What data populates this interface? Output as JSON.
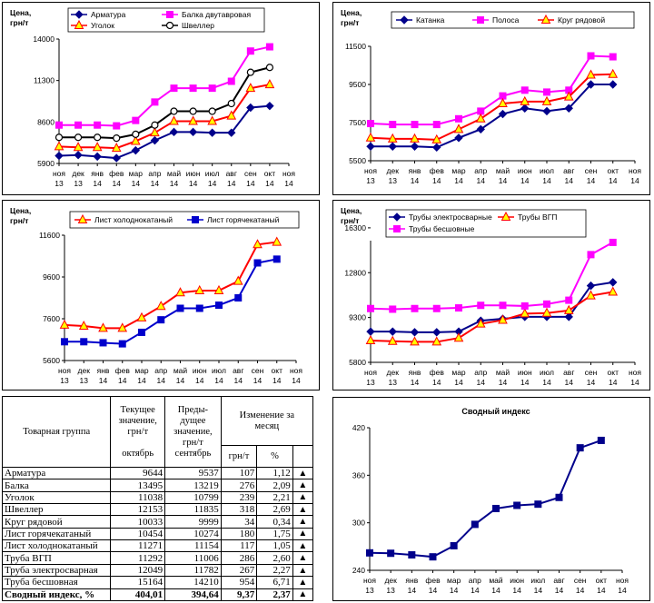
{
  "month_labels": [
    [
      "ноя",
      "13"
    ],
    [
      "дек",
      "13"
    ],
    [
      "янв",
      "14"
    ],
    [
      "фев",
      "14"
    ],
    [
      "мар",
      "14"
    ],
    [
      "апр",
      "14"
    ],
    [
      "май",
      "14"
    ],
    [
      "июн",
      "14"
    ],
    [
      "июл",
      "14"
    ],
    [
      "авг",
      "14"
    ],
    [
      "сен",
      "14"
    ],
    [
      "окт",
      "14"
    ],
    [
      "ноя",
      "14"
    ]
  ],
  "chart_data": [
    {
      "type": "line",
      "y_title_line1": "Цена,",
      "y_title_line2": "грн/т",
      "ylim": [
        5900,
        14000
      ],
      "yticks": [
        5900,
        8600,
        11300,
        14000
      ],
      "series": [
        {
          "name": "Арматура",
          "color": "#00008B",
          "marker": "diamond",
          "values": [
            6400,
            6450,
            6350,
            6250,
            6750,
            7400,
            7950,
            7950,
            7900,
            7900,
            9537,
            9644
          ]
        },
        {
          "name": "Балка двутавровая",
          "color": "#FF00FF",
          "marker": "square",
          "values": [
            8400,
            8400,
            8400,
            8350,
            8700,
            9900,
            10800,
            10800,
            10800,
            11250,
            13219,
            13495
          ]
        },
        {
          "name": "Уголок",
          "color": "#FF0000",
          "marker": "triangle",
          "values": [
            7000,
            6950,
            6950,
            6900,
            7350,
            7900,
            8650,
            8650,
            8650,
            9000,
            10799,
            11038
          ]
        },
        {
          "name": "Швеллер",
          "color": "#000000",
          "marker": "circle",
          "values": [
            7600,
            7600,
            7600,
            7550,
            7800,
            8400,
            9300,
            9300,
            9300,
            9800,
            11835,
            12153
          ]
        }
      ]
    },
    {
      "type": "line",
      "y_title_line1": "Цена,",
      "y_title_line2": "грн/т",
      "ylim": [
        5500,
        11500
      ],
      "yticks": [
        5500,
        7500,
        9500,
        11500
      ],
      "series": [
        {
          "name": "Катанка",
          "color": "#00008B",
          "marker": "diamond",
          "values": [
            6250,
            6250,
            6250,
            6200,
            6700,
            7150,
            7950,
            8250,
            8100,
            8250,
            9500,
            9500
          ]
        },
        {
          "name": "Полоса",
          "color": "#FF00FF",
          "marker": "square",
          "values": [
            7450,
            7400,
            7400,
            7400,
            7700,
            8100,
            8900,
            9200,
            9100,
            9200,
            11000,
            10950
          ]
        },
        {
          "name": "Круг рядовой",
          "color": "#FF0000",
          "marker": "triangle",
          "values": [
            6700,
            6650,
            6650,
            6600,
            7150,
            7700,
            8500,
            8600,
            8600,
            8850,
            9999,
            10033
          ]
        }
      ]
    },
    {
      "type": "line",
      "y_title_line1": "Цена,",
      "y_title_line2": "грн/т",
      "ylim": [
        5600,
        11600
      ],
      "yticks": [
        5600,
        7600,
        9600,
        11600
      ],
      "series": [
        {
          "name": "Лист холоднокатаный",
          "color": "#FF0000",
          "marker": "triangle",
          "values": [
            7300,
            7250,
            7150,
            7150,
            7650,
            8200,
            8850,
            8950,
            8950,
            9400,
            11154,
            11271
          ]
        },
        {
          "name": "Лист горячекатаный",
          "color": "#0000CC",
          "marker": "square",
          "values": [
            6500,
            6500,
            6450,
            6400,
            6950,
            7550,
            8100,
            8100,
            8250,
            8600,
            10274,
            10454
          ]
        }
      ]
    },
    {
      "type": "line",
      "y_title_line1": "Цена,",
      "y_title_line2": "грн/т",
      "ylim": [
        5800,
        15300
      ],
      "yticks": [
        5800,
        9300,
        12800,
        16300
      ],
      "series": [
        {
          "name": "Трубы электросварные",
          "color": "#00008B",
          "marker": "diamond",
          "values": [
            8200,
            8200,
            8150,
            8150,
            8200,
            9050,
            9200,
            9350,
            9350,
            9350,
            11782,
            12049
          ]
        },
        {
          "name": "Трубы ВГП",
          "color": "#FF0000",
          "marker": "triangle",
          "values": [
            7500,
            7450,
            7400,
            7400,
            7700,
            8800,
            9100,
            9600,
            9650,
            9850,
            11006,
            11292
          ]
        },
        {
          "name": "Трубы бесшовные",
          "color": "#FF00FF",
          "marker": "square",
          "values": [
            10000,
            9950,
            10000,
            10000,
            10050,
            10250,
            10250,
            10200,
            10350,
            10650,
            14210,
            15164
          ]
        }
      ]
    },
    {
      "type": "line",
      "title": "Сводный индекс",
      "ylim": [
        240,
        420
      ],
      "yticks": [
        240,
        300,
        360,
        420
      ],
      "series": [
        {
          "name": "",
          "color": "#00008B",
          "marker": "square",
          "values": [
            262,
            261.5,
            259.5,
            257,
            271,
            298,
            318,
            322,
            323.5,
            332,
            394.64,
            404.01
          ]
        }
      ]
    }
  ],
  "table": {
    "header_group": "Товарная группа",
    "header_current_1": "Текущее",
    "header_current_2": "значение,",
    "header_current_3": "грн/т",
    "header_current_month": "октябрь",
    "header_prev_1": "Преды-",
    "header_prev_2": "дущее",
    "header_prev_3": "значение,",
    "header_prev_4": "грн/т",
    "header_prev_month": "сентябрь",
    "header_change_1": "Изменение за",
    "header_change_2": "месяц",
    "header_change_abs": "грн/т",
    "header_change_pct": "%",
    "rows": [
      {
        "name": "Арматура",
        "cur": "9644",
        "prev": "9537",
        "abs": "107",
        "pct": "1,12",
        "arrow": "▲"
      },
      {
        "name": "Балка",
        "cur": "13495",
        "prev": "13219",
        "abs": "276",
        "pct": "2,09",
        "arrow": "▲"
      },
      {
        "name": "Уголок",
        "cur": "11038",
        "prev": "10799",
        "abs": "239",
        "pct": "2,21",
        "arrow": "▲"
      },
      {
        "name": "Швеллер",
        "cur": "12153",
        "prev": "11835",
        "abs": "318",
        "pct": "2,69",
        "arrow": "▲"
      },
      {
        "name": "Круг рядовой",
        "cur": "10033",
        "prev": "9999",
        "abs": "34",
        "pct": "0,34",
        "arrow": "▲"
      },
      {
        "name": "Лист горячекатаный",
        "cur": "10454",
        "prev": "10274",
        "abs": "180",
        "pct": "1,75",
        "arrow": "▲"
      },
      {
        "name": "Лист холоднокатаный",
        "cur": "11271",
        "prev": "11154",
        "abs": "117",
        "pct": "1,05",
        "arrow": "▲"
      },
      {
        "name": "Труба ВГП",
        "cur": "11292",
        "prev": "11006",
        "abs": "286",
        "pct": "2,60",
        "arrow": "▲"
      },
      {
        "name": "Труба электросварная",
        "cur": "12049",
        "prev": "11782",
        "abs": "267",
        "pct": "2,27",
        "arrow": "▲"
      },
      {
        "name": "Труба бесшовная",
        "cur": "15164",
        "prev": "14210",
        "abs": "954",
        "pct": "6,71",
        "arrow": "▲"
      }
    ],
    "summary": {
      "name": "Сводный индекс, %",
      "cur": "404,01",
      "prev": "394,64",
      "abs": "9,37",
      "pct": "2,37",
      "arrow": "▲"
    }
  }
}
